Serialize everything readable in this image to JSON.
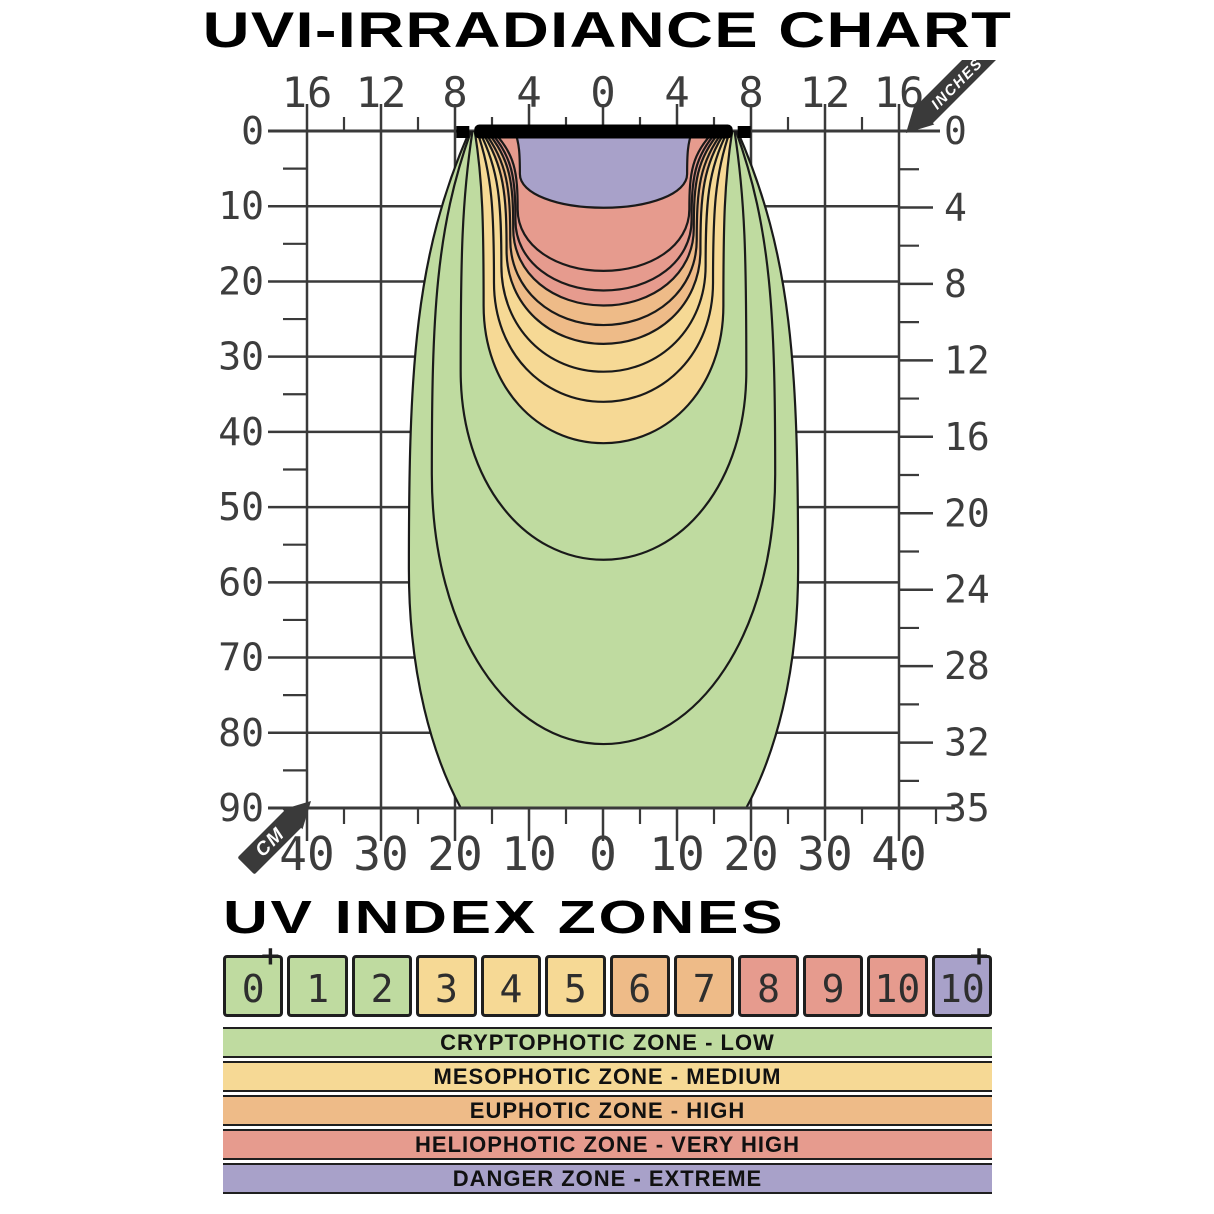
{
  "title": "UVI-IRRADIANCE CHART",
  "section2_title": "UV INDEX ZONES",
  "colors": {
    "green": "#bfdba0",
    "yellow": "#f6d995",
    "orange": "#eebb88",
    "red": "#e69b8e",
    "purple": "#a8a1c9",
    "axis_gray": "#3a3a3a",
    "number_gray": "#3d3d3d",
    "ink": "#1a1a1a",
    "background": "#ffffff"
  },
  "chart_data": {
    "type": "contour-irradiance",
    "title": "UVI-IRRADIANCE CHART",
    "top_axis": {
      "unit": "INCHES",
      "labels": [
        "16",
        "12",
        "8",
        "4",
        "0",
        "4",
        "8",
        "12",
        "16"
      ]
    },
    "left_axis": {
      "unit": "CM",
      "labels": [
        "0",
        "10",
        "20",
        "30",
        "40",
        "50",
        "60",
        "70",
        "80",
        "90"
      ]
    },
    "right_axis": {
      "unit": "INCHES",
      "labels": [
        "0",
        "4",
        "8",
        "12",
        "16",
        "20",
        "24",
        "28",
        "32",
        "35"
      ]
    },
    "bottom_axis": {
      "unit": "CM",
      "labels": [
        "40",
        "30",
        "20",
        "10",
        "0",
        "10",
        "20",
        "30",
        "40"
      ]
    },
    "grid": {
      "x_range_cm": [
        -40,
        40
      ],
      "depth_range_cm": [
        0,
        90
      ],
      "step_cm": 10,
      "grid_on": true
    },
    "lamp": {
      "length_cm": 36,
      "half_length_cm": 18,
      "end_caps": true
    },
    "contours": [
      {
        "band": "UVI 0-1",
        "color_key": "green",
        "top_half_width_cm": 18.1,
        "max_half_width_cm": 26.3,
        "depth_cm": 104,
        "clipped_at_cm": 90
      },
      {
        "band": "UVI 1-2",
        "color_key": "green",
        "top_half_width_cm": 17.9,
        "max_half_width_cm": 23.2,
        "depth_cm": 81.5
      },
      {
        "band": "UVI 2-3",
        "color_key": "green",
        "top_half_width_cm": 17.7,
        "max_half_width_cm": 19.3,
        "depth_cm": 57
      },
      {
        "band": "UVI 3-4",
        "color_key": "yellow",
        "top_half_width_cm": 17.4,
        "max_half_width_cm": 16.2,
        "depth_cm": 41.5
      },
      {
        "band": "UVI 4-5",
        "color_key": "yellow",
        "top_half_width_cm": 17.1,
        "max_half_width_cm": 14.8,
        "depth_cm": 36
      },
      {
        "band": "UVI 5-6",
        "color_key": "yellow",
        "top_half_width_cm": 16.8,
        "max_half_width_cm": 13.8,
        "depth_cm": 32
      },
      {
        "band": "UVI 6-7",
        "color_key": "orange",
        "top_half_width_cm": 16.5,
        "max_half_width_cm": 13.1,
        "depth_cm": 28.3
      },
      {
        "band": "UVI 7-8",
        "color_key": "orange",
        "top_half_width_cm": 16.2,
        "max_half_width_cm": 12.6,
        "depth_cm": 25.8
      },
      {
        "band": "UVI 8-9",
        "color_key": "red",
        "top_half_width_cm": 15.8,
        "max_half_width_cm": 12.2,
        "depth_cm": 23.2
      },
      {
        "band": "UVI 9-10",
        "color_key": "red",
        "top_half_width_cm": 15.4,
        "max_half_width_cm": 11.9,
        "depth_cm": 21.2
      },
      {
        "band": "UVI 10-11",
        "color_key": "red",
        "top_half_width_cm": 15.0,
        "max_half_width_cm": 11.6,
        "depth_cm": 18.6
      },
      {
        "band": "UVI 10+",
        "color_key": "purple",
        "top_half_width_cm": 12.0,
        "max_half_width_cm": 11.3,
        "depth_cm": 10.2
      }
    ]
  },
  "uv_index_scale": {
    "boxes": [
      {
        "label": "0",
        "sup": "+",
        "color_key": "green"
      },
      {
        "label": "1",
        "sup": "",
        "color_key": "green"
      },
      {
        "label": "2",
        "sup": "",
        "color_key": "green"
      },
      {
        "label": "3",
        "sup": "",
        "color_key": "yellow"
      },
      {
        "label": "4",
        "sup": "",
        "color_key": "yellow"
      },
      {
        "label": "5",
        "sup": "",
        "color_key": "yellow"
      },
      {
        "label": "6",
        "sup": "",
        "color_key": "orange"
      },
      {
        "label": "7",
        "sup": "",
        "color_key": "orange"
      },
      {
        "label": "8",
        "sup": "",
        "color_key": "red"
      },
      {
        "label": "9",
        "sup": "",
        "color_key": "red"
      },
      {
        "label": "10",
        "sup": "",
        "color_key": "red"
      },
      {
        "label": "10",
        "sup": "+",
        "color_key": "purple"
      }
    ]
  },
  "zone_bars": [
    {
      "label": "CRYPTOPHOTIC ZONE - LOW",
      "color_key": "green"
    },
    {
      "label": "MESOPHOTIC ZONE - MEDIUM",
      "color_key": "yellow"
    },
    {
      "label": "EUPHOTIC ZONE - HIGH",
      "color_key": "orange"
    },
    {
      "label": "HELIOPHOTIC ZONE - VERY HIGH",
      "color_key": "red"
    },
    {
      "label": "DANGER ZONE - EXTREME",
      "color_key": "purple"
    }
  ]
}
